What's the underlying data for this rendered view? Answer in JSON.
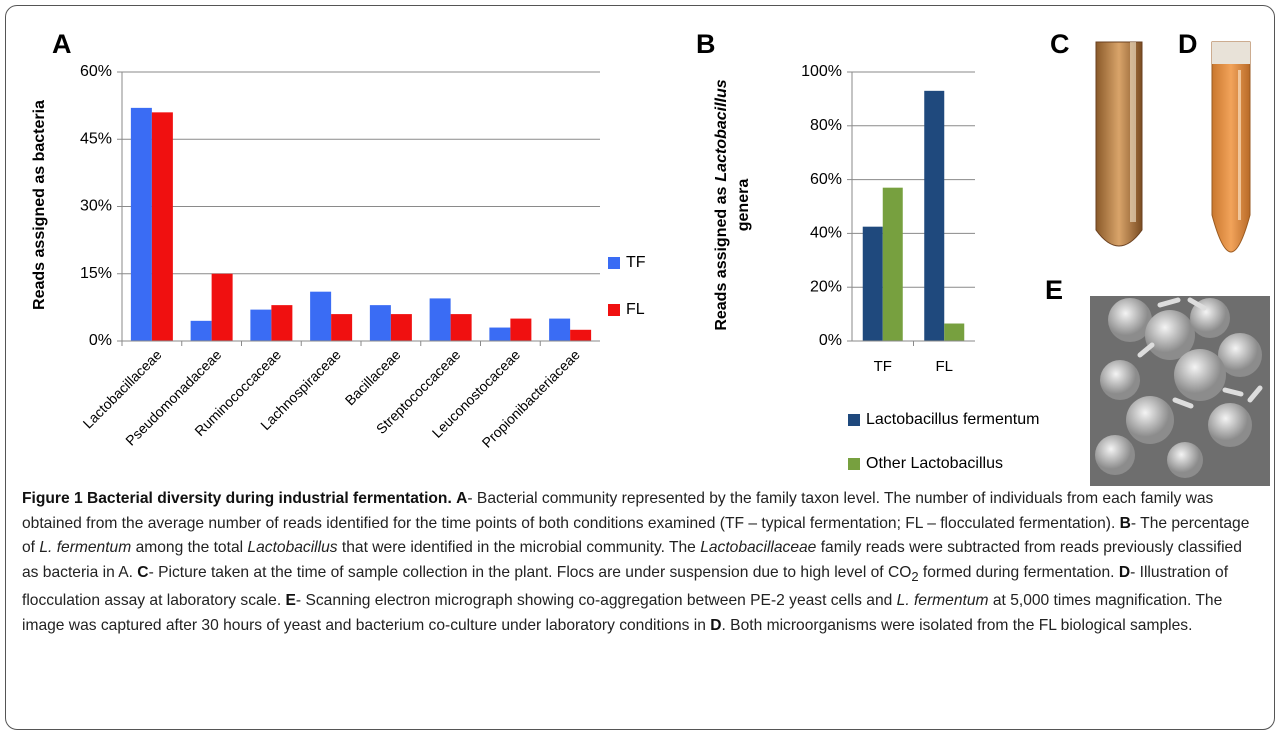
{
  "panel_labels": [
    "A",
    "B",
    "C",
    "D",
    "E"
  ],
  "chart_data": [
    {
      "type": "bar",
      "ylabel": [
        "Reads assigned as bacteria"
      ],
      "categories": [
        "Lactobacillaceae",
        "Pseudomonadaceae",
        "Ruminococcaceae",
        "Lachnospiraceae",
        "Bacillaceae",
        "Streptococcaceae",
        "Leuconostocaceae",
        "Propionibacteriaceae"
      ],
      "series": [
        {
          "name": "TF",
          "color": "#3a6cf4",
          "values": [
            52,
            4.5,
            7,
            11,
            8,
            9.5,
            3,
            5
          ]
        },
        {
          "name": "FL",
          "color": "#f01010",
          "values": [
            51,
            15,
            8,
            6,
            6,
            6,
            5,
            2.5
          ]
        }
      ],
      "ylim": [
        0,
        60
      ],
      "yticks": [
        {
          "value": 0,
          "label": "0%"
        },
        {
          "value": 15,
          "label": "15%"
        },
        {
          "value": 30,
          "label": "30%"
        },
        {
          "value": 45,
          "label": "45%"
        },
        {
          "value": 60,
          "label": "60%"
        }
      ],
      "grid": true,
      "legend": "right"
    },
    {
      "type": "bar",
      "ylabel": [
        "Reads assigned as",
        "Lactobacillus",
        "genera"
      ],
      "categories": [
        "TF",
        "FL"
      ],
      "series": [
        {
          "name": "Lactobacillus fermentum",
          "color": "#1f497d",
          "values": [
            42.5,
            93
          ]
        },
        {
          "name": "Other Lactobacillus",
          "color": "#77a03f",
          "values": [
            57,
            6.5
          ]
        }
      ],
      "ylim": [
        0,
        100
      ],
      "yticks": [
        {
          "value": 0,
          "label": "0%"
        },
        {
          "value": 20,
          "label": "20%"
        },
        {
          "value": 40,
          "label": "40%"
        },
        {
          "value": 60,
          "label": "60%"
        },
        {
          "value": 80,
          "label": "80%"
        },
        {
          "value": 100,
          "label": "100%"
        }
      ],
      "grid": true,
      "legend": "bottom"
    }
  ],
  "caption": [
    "Figure 1 Bacterial diversity during industrial fermentation.",
    "A",
    "- Bacterial community represented by the family taxon level. The number of individuals from each family was obtained from the average number of reads identified for the time points of both conditions examined (TF – typical fermentation; FL – flocculated fermentation).",
    "B",
    "- The percentage of",
    "L. fermentum",
    "among the total",
    "Lactobacillus",
    "that were identified in the microbial community. The",
    "Lactobacillaceae",
    "family reads were subtracted from reads previously classified as bacteria in A.",
    "C",
    "- Picture taken at the time of sample collection in the plant. Flocs are under suspension due to high level of CO",
    "2",
    "formed during fermentation.",
    "D",
    "- Illustration of flocculation assay at laboratory scale.",
    "E",
    "- Scanning electron micrograph showing co-aggregation between PE-2 yeast cells and",
    "L. fermentum",
    "at 5,000 times magnification. The image was captured after 30 hours of yeast and bacterium co-culture under laboratory conditions in",
    "D",
    ". Both microorganisms were isolated from the FL biological samples."
  ]
}
